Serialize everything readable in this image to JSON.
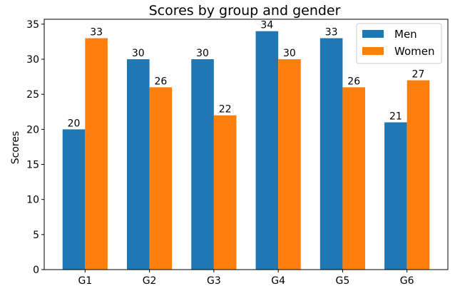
{
  "chart_data": {
    "type": "bar",
    "title": "Scores by group and gender",
    "ylabel": "Scores",
    "xlabel": "",
    "categories": [
      "G1",
      "G2",
      "G3",
      "G4",
      "G5",
      "G6"
    ],
    "series": [
      {
        "name": "Men",
        "color": "#1f77b4",
        "values": [
          20,
          30,
          30,
          34,
          33,
          21
        ]
      },
      {
        "name": "Women",
        "color": "#ff7f0e",
        "values": [
          33,
          26,
          22,
          30,
          26,
          27
        ]
      }
    ],
    "ylim": [
      0,
      35.7
    ],
    "yticks": [
      0,
      5,
      10,
      15,
      20,
      25,
      30,
      35
    ],
    "grid": false,
    "legend_position": "upper right",
    "data_labels": true
  }
}
